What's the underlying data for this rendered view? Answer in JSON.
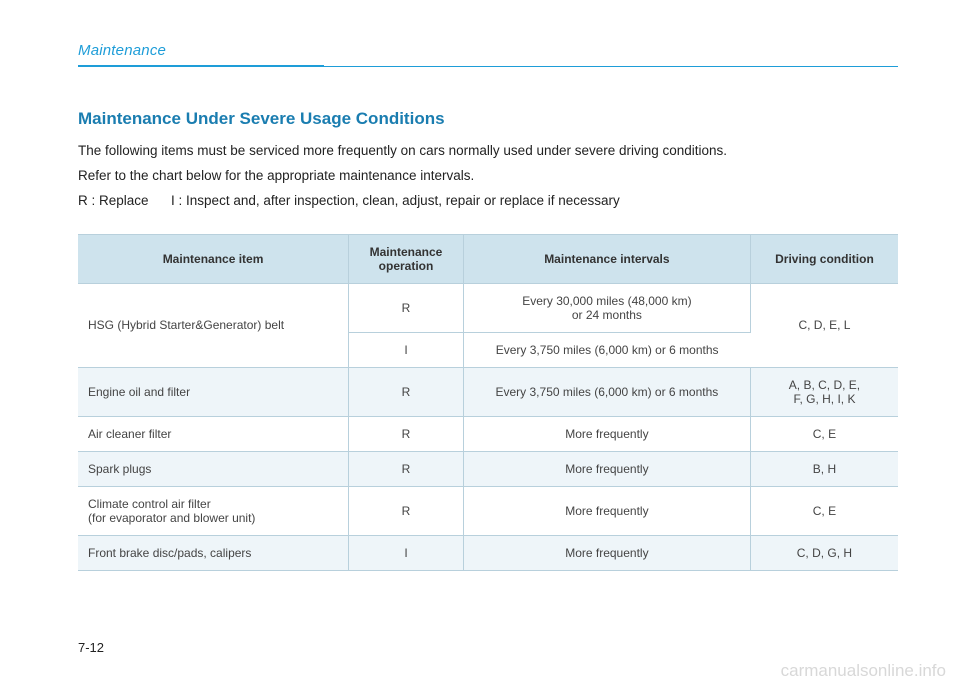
{
  "colors": {
    "brand_blue": "#1e9dd8",
    "brand_dark": "#1a7db0",
    "header_bg": "#cee3ed",
    "row_alt_bg": "#eef5f9",
    "row_bg": "#ffffff",
    "border": "#b8d0dc",
    "text": "#333333",
    "cell_text": "#444444",
    "watermark": "#d8d8d8"
  },
  "chapter": "Maintenance",
  "rule": {
    "thick_width_pct": 30,
    "thin_width_pct": 70
  },
  "section_title": "Maintenance Under Severe Usage Conditions",
  "paragraphs": [
    "The following items must be serviced more frequently on cars normally used under severe driving conditions.",
    "Refer to the chart below for the appropriate maintenance intervals."
  ],
  "legend": "R : Replace      I : Inspect and, after inspection, clean, adjust, repair or replace if necessary",
  "table": {
    "col_widths_pct": [
      33,
      14,
      35,
      18
    ],
    "headers": [
      "Maintenance item",
      "Maintenance operation",
      "Maintenance intervals",
      "Driving condition"
    ],
    "rows": [
      {
        "bg": "row_bg",
        "item": "HSG (Hybrid Starter&Generator) belt",
        "item_rowspan": 2,
        "op": "R",
        "interval": "Every 30,000 miles (48,000 km)\nor 24 months",
        "cond": "C, D, E, L",
        "cond_rowspan": 2
      },
      {
        "bg": "row_bg",
        "op": "I",
        "interval": "Every 3,750 miles (6,000 km) or 6 months"
      },
      {
        "bg": "row_alt_bg",
        "item": "Engine oil and filter",
        "op": "R",
        "interval": "Every 3,750 miles (6,000 km) or 6 months",
        "cond": "A, B, C, D, E,\nF, G, H, I, K"
      },
      {
        "bg": "row_bg",
        "item": "Air cleaner filter",
        "op": "R",
        "interval": "More frequently",
        "cond": "C, E"
      },
      {
        "bg": "row_alt_bg",
        "item": "Spark plugs",
        "op": "R",
        "interval": "More frequently",
        "cond": "B, H"
      },
      {
        "bg": "row_bg",
        "item": "Climate control air filter\n(for evaporator and blower unit)",
        "op": "R",
        "interval": "More frequently",
        "cond": "C, E"
      },
      {
        "bg": "row_alt_bg",
        "item": "Front brake disc/pads, calipers",
        "op": "I",
        "interval": "More frequently",
        "cond": "C, D, G, H"
      }
    ]
  },
  "page_number": "7-12",
  "watermark": "carmanualsonline.info"
}
